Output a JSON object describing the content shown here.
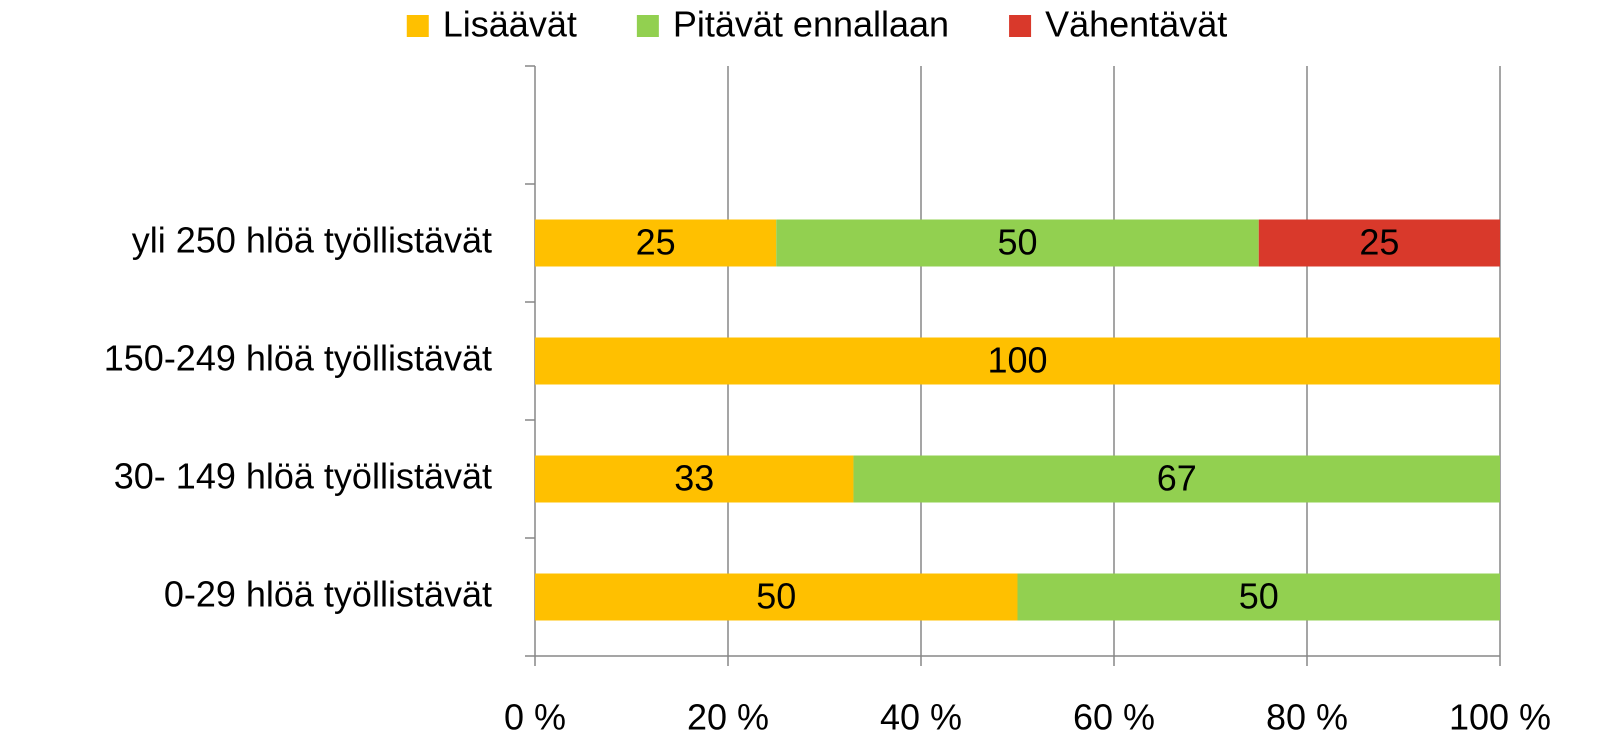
{
  "chart_data": {
    "type": "stacked_barh",
    "categories": [
      "0-29 hlöä työllistävät",
      "30- 149 hlöä työllistävät",
      "150-249 hlöä työllistävät",
      "yli 250 hlöä työllistävät",
      null
    ],
    "series": [
      {
        "name": "Lisäävät",
        "color": "#ffc000",
        "values": [
          50,
          33,
          100,
          25,
          null
        ]
      },
      {
        "name": "Pitävät ennallaan",
        "color": "#92d050",
        "values": [
          50,
          67,
          null,
          50,
          null
        ]
      },
      {
        "name": "Vähentävät",
        "color": "#d9392b",
        "values": [
          null,
          null,
          null,
          25,
          null
        ]
      }
    ],
    "xlim": [
      0,
      100
    ],
    "xticks": [
      {
        "value": 0,
        "label": "0 %"
      },
      {
        "value": 20,
        "label": "20 %"
      },
      {
        "value": 40,
        "label": "40 %"
      },
      {
        "value": 60,
        "label": "60 %"
      },
      {
        "value": 80,
        "label": "80 %"
      },
      {
        "value": 100,
        "label": "100 %"
      }
    ],
    "grid": true,
    "legend": "top"
  }
}
